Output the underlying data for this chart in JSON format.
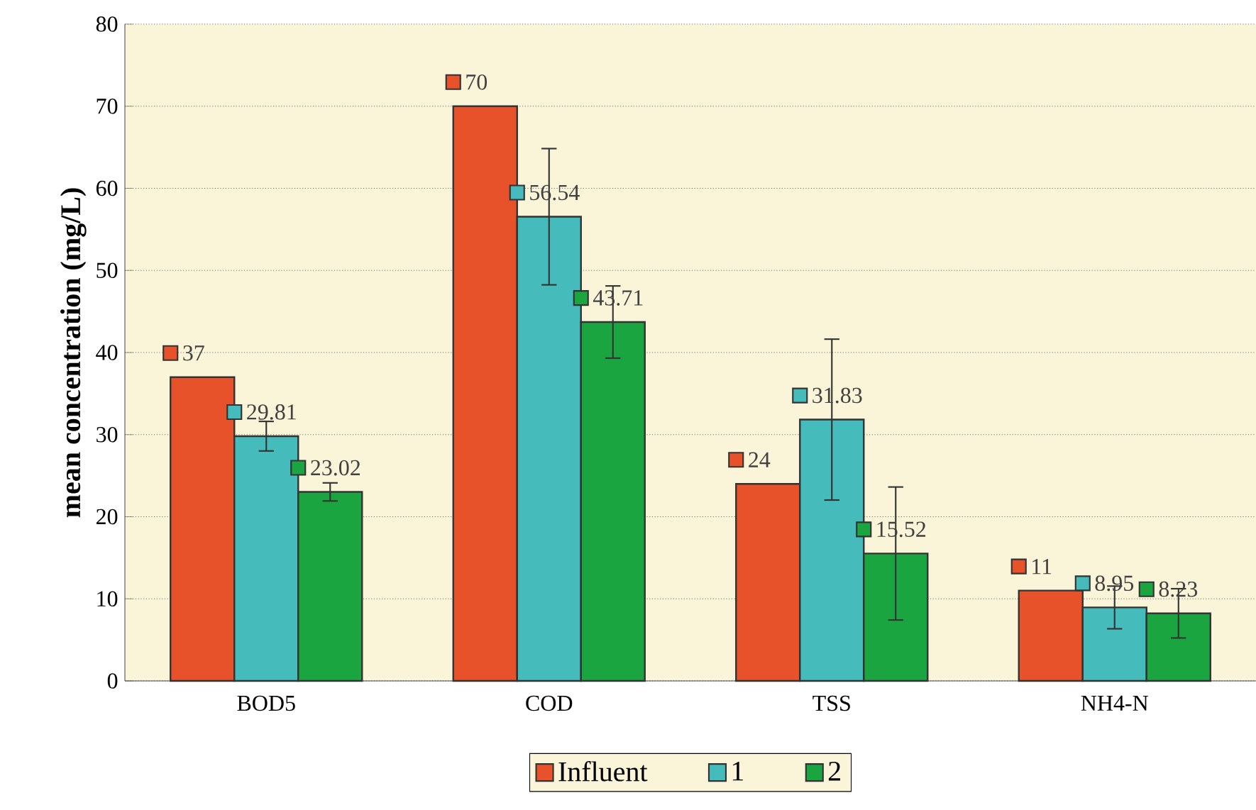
{
  "chart_data": {
    "type": "bar",
    "ylabel": "mean concentration (mg/L)",
    "categories": [
      "BOD5",
      "COD",
      "TSS",
      "NH4-N"
    ],
    "series": [
      {
        "name": "Influent",
        "color": "#e8522a",
        "values": [
          37,
          70,
          24,
          11
        ]
      },
      {
        "name": "1",
        "color": "#46bbbb",
        "values": [
          29.81,
          56.54,
          31.83,
          8.95
        ],
        "errors": [
          1.8,
          8.3,
          9.8,
          2.6
        ]
      },
      {
        "name": "2",
        "color": "#1aa541",
        "values": [
          23.02,
          43.71,
          15.52,
          8.23
        ],
        "errors": [
          1.1,
          4.4,
          8.1,
          3.0
        ]
      }
    ],
    "ylim": [
      0,
      80
    ],
    "yticks": [
      0,
      10,
      20,
      30,
      40,
      50,
      60,
      70,
      80
    ],
    "grid": "y",
    "legend": "bottom",
    "data_labels": true
  }
}
